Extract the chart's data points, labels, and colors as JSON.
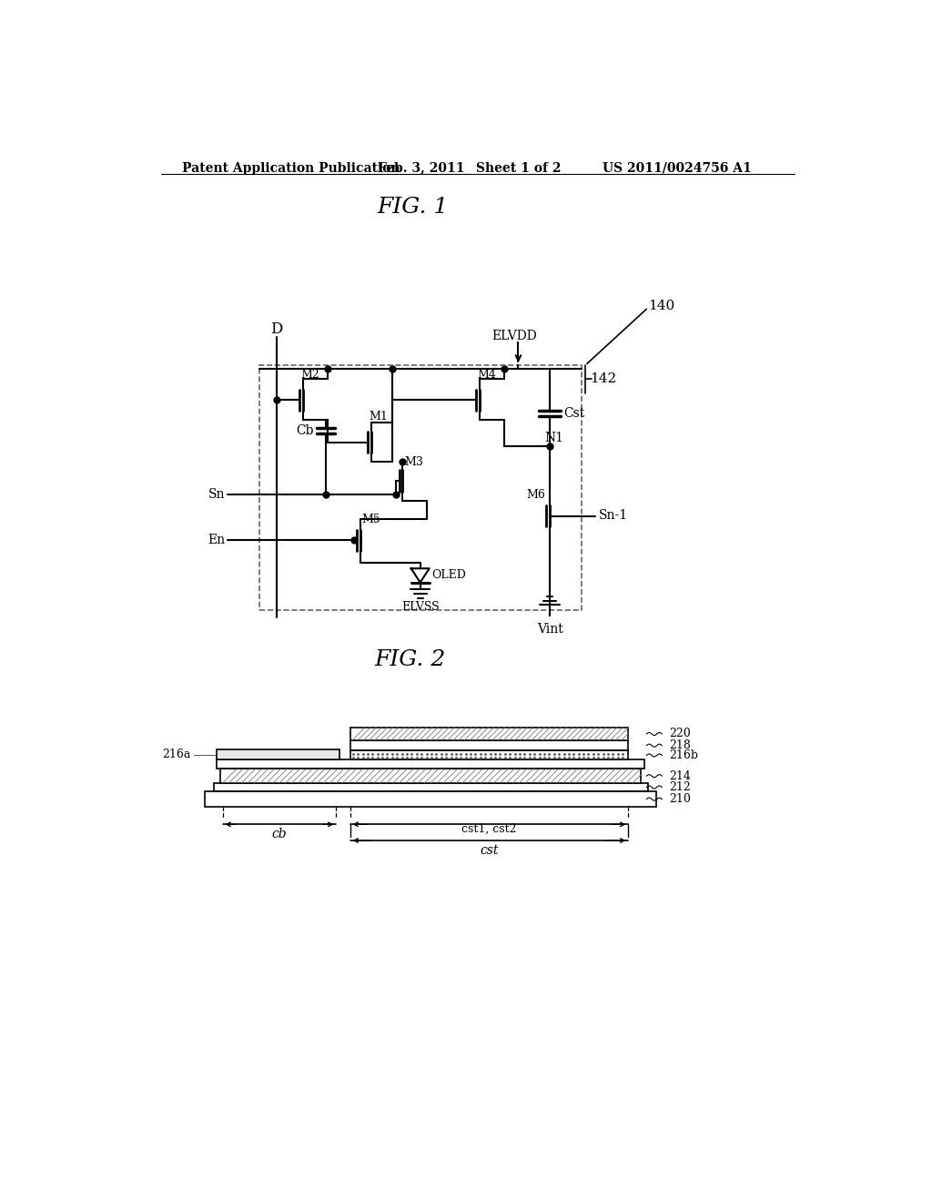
{
  "title_header": "Patent Application Publication",
  "date_header": "Feb. 3, 2011",
  "sheet_header": "Sheet 1 of 2",
  "patent_num": "US 2011/0024756 A1",
  "fig1_label": "FIG. 1",
  "fig2_label": "FIG. 2",
  "bg_color": "#ffffff",
  "line_color": "#000000",
  "dashed_color": "#555555"
}
